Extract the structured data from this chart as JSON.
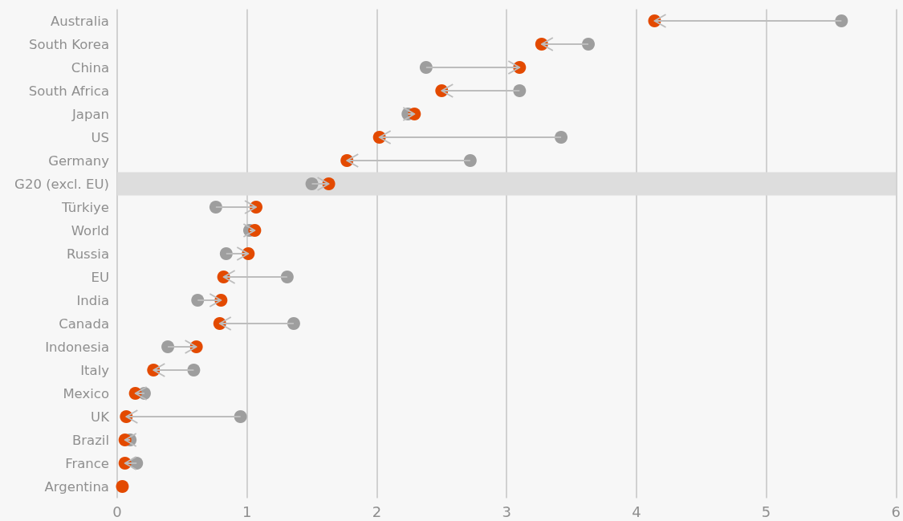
{
  "chart_data": {
    "type": "scatter",
    "orientation": "horizontal",
    "marker": "circle",
    "grid": "x",
    "categories": [
      "Australia",
      "South Korea",
      "China",
      "South Africa",
      "Japan",
      "US",
      "Germany",
      "G20 (excl. EU)",
      "Türkiye",
      "World",
      "Russia",
      "EU",
      "India",
      "Canada",
      "Indonesia",
      "Italy",
      "Mexico",
      "UK",
      "Brazil",
      "France",
      "Argentina"
    ],
    "series": [
      {
        "color": "#9e9e9e",
        "values": [
          5.58,
          3.63,
          2.38,
          3.1,
          2.24,
          3.42,
          2.72,
          1.5,
          0.76,
          1.02,
          0.84,
          1.31,
          0.62,
          1.36,
          0.39,
          0.59,
          0.21,
          0.95,
          0.1,
          0.15,
          null
        ]
      },
      {
        "color": "#e34a00",
        "values": [
          4.14,
          3.27,
          3.1,
          2.5,
          2.29,
          2.02,
          1.77,
          1.63,
          1.07,
          1.06,
          1.01,
          0.82,
          0.8,
          0.79,
          0.61,
          0.28,
          0.14,
          0.07,
          0.06,
          0.06,
          0.04
        ]
      }
    ],
    "xlim": [
      0,
      6
    ],
    "xticks": [
      0,
      1,
      2,
      3,
      4,
      5,
      6
    ],
    "bands": [
      {
        "axis": "y",
        "from": "G20 (excl. EU)",
        "to": "G20 (excl. EU)",
        "color": "#dddddd"
      }
    ]
  }
}
